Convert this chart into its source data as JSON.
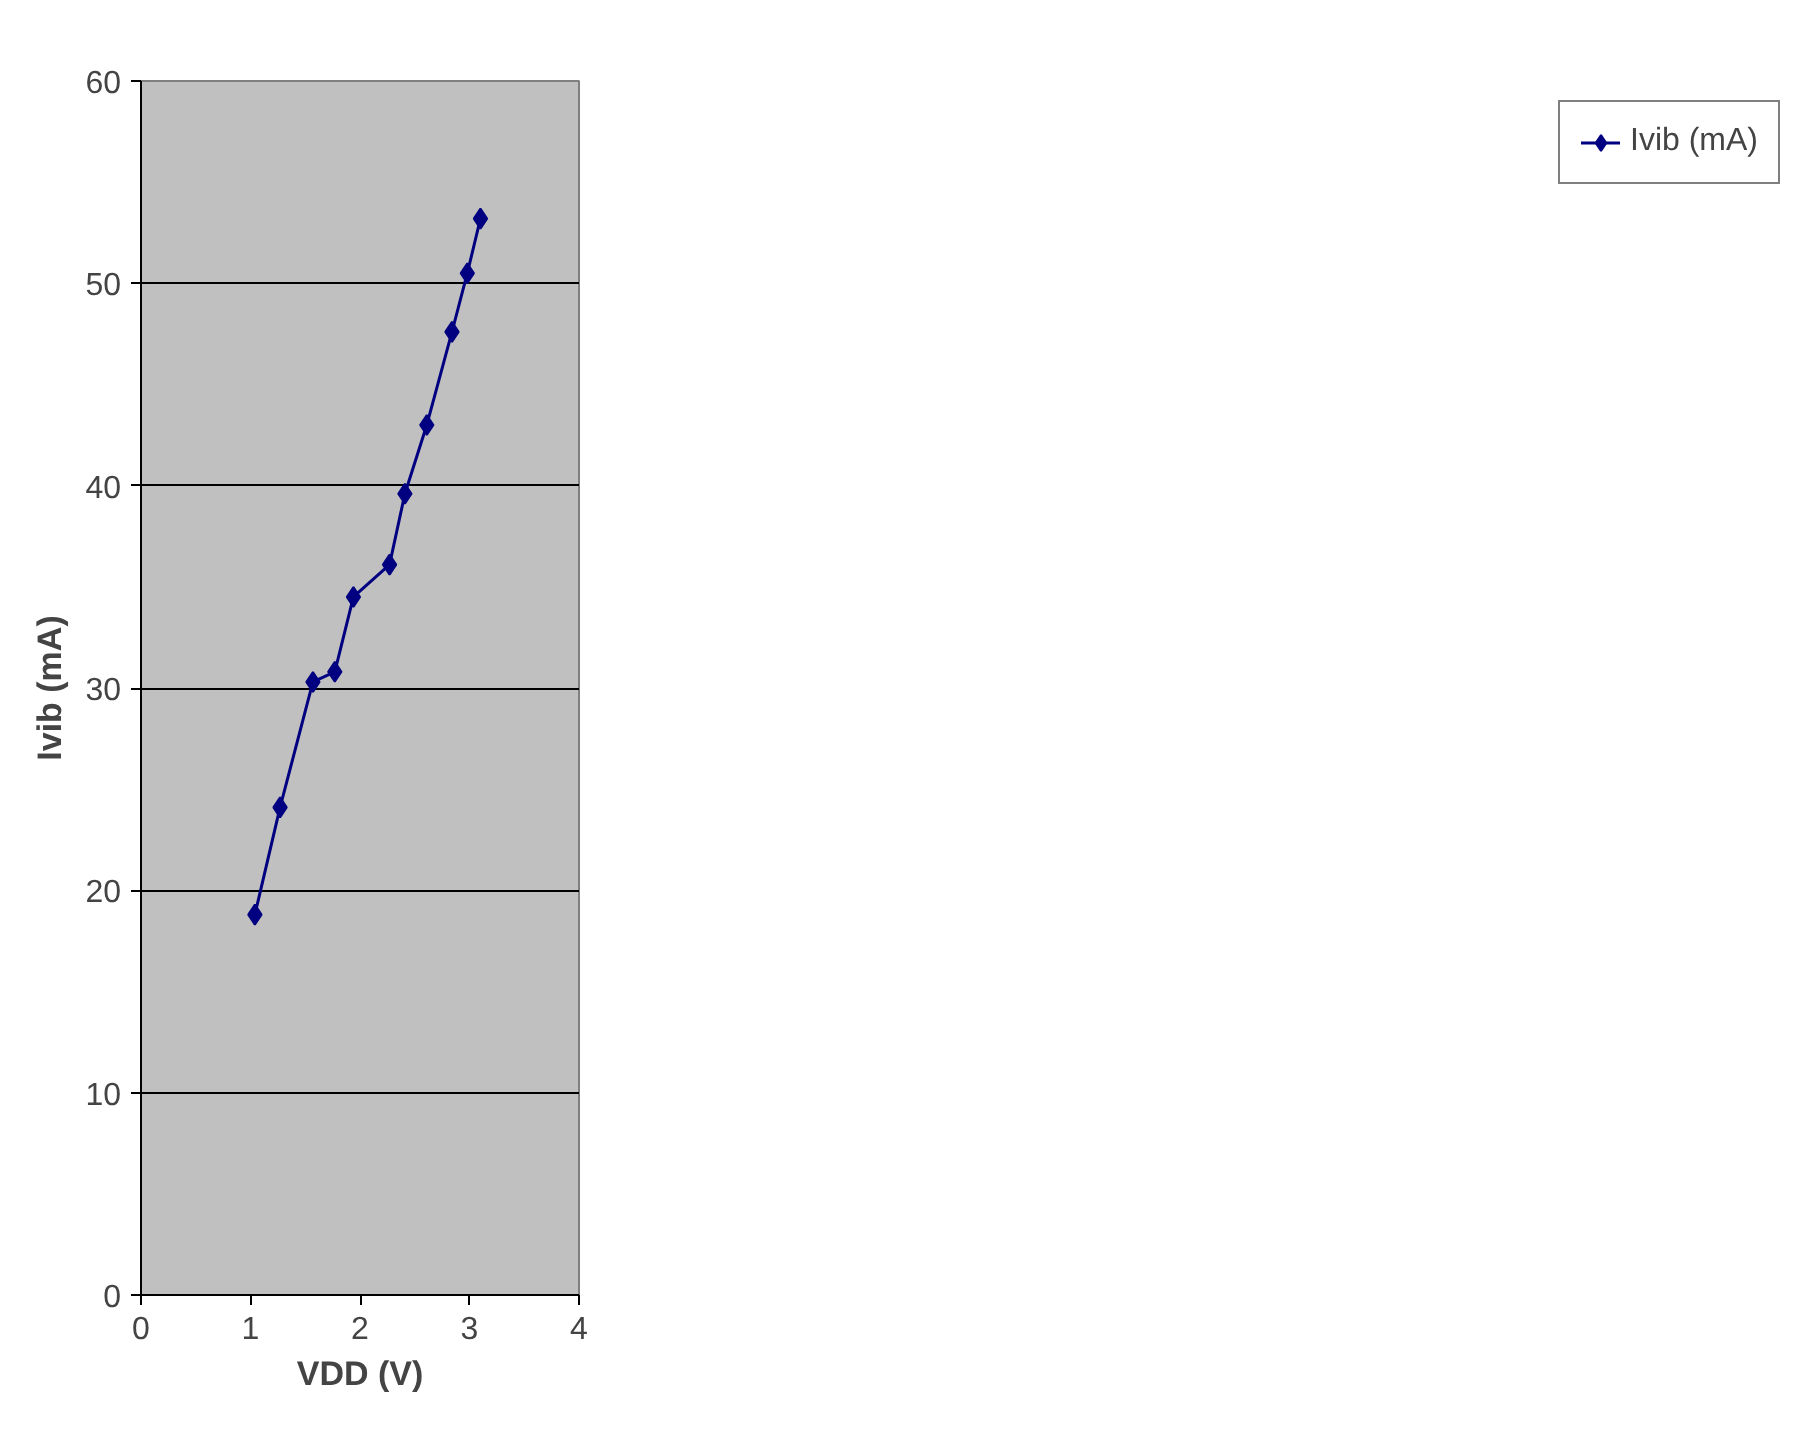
{
  "chart_data": {
    "type": "line",
    "xlabel": "VDD (V)",
    "ylabel": "Ivib (mA)",
    "xlim": [
      0,
      4
    ],
    "xticks": [
      0,
      1,
      2,
      3,
      4
    ],
    "ylim": [
      0,
      60
    ],
    "yticks": [
      0,
      10,
      20,
      30,
      40,
      50,
      60
    ],
    "grid": "y",
    "legend": "right",
    "marker": "diamond",
    "line_style": "solid",
    "series": [
      {
        "name": "Ivib (mA)",
        "color": "#000080",
        "x": [
          1.04,
          1.27,
          1.57,
          1.77,
          1.94,
          2.27,
          2.41,
          2.61,
          2.84,
          2.98,
          3.1
        ],
        "values": [
          18.8,
          24.1,
          30.3,
          30.8,
          34.5,
          36.1,
          39.6,
          43.0,
          47.6,
          50.5,
          53.2
        ]
      }
    ]
  }
}
